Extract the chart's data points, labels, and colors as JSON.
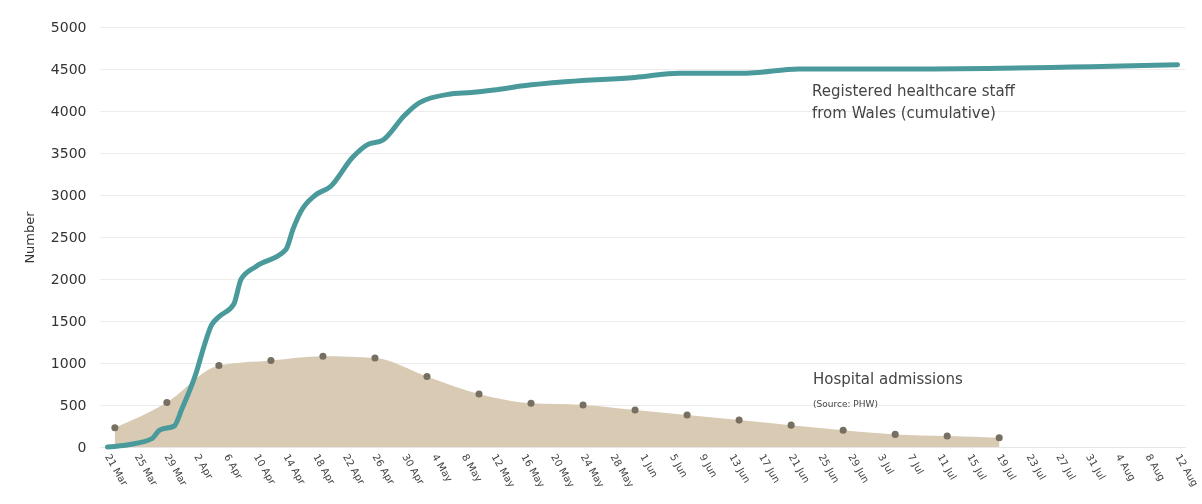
{
  "chart_data": {
    "type": "line",
    "ylabel": "Number",
    "xlim": [
      "--03-20",
      "--08-13"
    ],
    "xticks": [
      {
        "value": "--03-21",
        "label": "21 Mar"
      },
      {
        "value": "--03-25",
        "label": "25 Mar"
      },
      {
        "value": "--03-29",
        "label": "29 Mar"
      },
      {
        "value": "--04-02",
        "label": "2 Apr"
      },
      {
        "value": "--04-06",
        "label": "6 Apr"
      },
      {
        "value": "--04-10",
        "label": "10 Apr"
      },
      {
        "value": "--04-14",
        "label": "14 Apr"
      },
      {
        "value": "--04-18",
        "label": "18 Apr"
      },
      {
        "value": "--04-22",
        "label": "22 Apr"
      },
      {
        "value": "--04-26",
        "label": "26 Apr"
      },
      {
        "value": "--04-30",
        "label": "30 Apr"
      },
      {
        "value": "--05-04",
        "label": "4 May"
      },
      {
        "value": "--05-08",
        "label": "8 May"
      },
      {
        "value": "--05-12",
        "label": "12 May"
      },
      {
        "value": "--05-16",
        "label": "16 May"
      },
      {
        "value": "--05-20",
        "label": "20 May"
      },
      {
        "value": "--05-24",
        "label": "24 May"
      },
      {
        "value": "--05-28",
        "label": "28 May"
      },
      {
        "value": "--06-01",
        "label": "1 Jun"
      },
      {
        "value": "--06-05",
        "label": "5 Jun"
      },
      {
        "value": "--06-09",
        "label": "9 Jun"
      },
      {
        "value": "--06-13",
        "label": "13 Jun"
      },
      {
        "value": "--06-17",
        "label": "17 Jun"
      },
      {
        "value": "--06-21",
        "label": "21 Jun"
      },
      {
        "value": "--06-25",
        "label": "25 Jun"
      },
      {
        "value": "--06-29",
        "label": "29 Jun"
      },
      {
        "value": "--07-03",
        "label": "3 Jul"
      },
      {
        "value": "--07-07",
        "label": "7 Jul"
      },
      {
        "value": "--07-11",
        "label": "11 Jul"
      },
      {
        "value": "--07-15",
        "label": "15 Jul"
      },
      {
        "value": "--07-19",
        "label": "19 Jul"
      },
      {
        "value": "--07-23",
        "label": "23 Jul"
      },
      {
        "value": "--07-27",
        "label": "27 Jul"
      },
      {
        "value": "--07-31",
        "label": "31 Jul"
      },
      {
        "value": "--08-04",
        "label": "4 Aug"
      },
      {
        "value": "--08-08",
        "label": "8 Aug"
      },
      {
        "value": "--08-12",
        "label": "12 Aug"
      }
    ],
    "ylim": [
      0,
      5000
    ],
    "yticks": [
      0,
      500,
      1000,
      1500,
      2000,
      2500,
      3000,
      3500,
      4000,
      4500,
      5000
    ],
    "grid": "y",
    "series": [
      {
        "name": "Hospital admissions",
        "type": "area",
        "color": "#d9cbb3",
        "marker": "circle",
        "x": [
          "--03-22",
          "--03-29",
          "--04-05",
          "--04-12",
          "--04-19",
          "--04-26",
          "--05-03",
          "--05-10",
          "--05-17",
          "--05-24",
          "--05-31",
          "--06-07",
          "--06-14",
          "--06-21",
          "--06-28",
          "--07-05",
          "--07-12",
          "--07-19"
        ],
        "values": [
          230,
          530,
          970,
          1030,
          1080,
          1060,
          840,
          630,
          520,
          500,
          440,
          380,
          320,
          260,
          200,
          150,
          130,
          110
        ]
      },
      {
        "name": "Registered healthcare staff from Wales (cumulative)",
        "type": "line",
        "color": "#4a9a9c",
        "x": [
          "--03-21",
          "--03-24",
          "--03-27",
          "--03-28",
          "--03-30",
          "--03-31",
          "--04-02",
          "--04-03",
          "--04-04",
          "--04-05",
          "--04-07",
          "--04-08",
          "--04-10",
          "--04-14",
          "--04-15",
          "--04-16",
          "--04-18",
          "--04-20",
          "--04-23",
          "--04-25",
          "--04-27",
          "--04-30",
          "--05-02",
          "--05-06",
          "--05-09",
          "--05-12",
          "--05-16",
          "--05-22",
          "--05-31",
          "--06-06",
          "--06-15",
          "--06-22",
          "--07-07",
          "--08-12"
        ],
        "values": [
          0,
          30,
          100,
          200,
          250,
          450,
          900,
          1200,
          1450,
          1550,
          1700,
          2000,
          2150,
          2350,
          2600,
          2800,
          3000,
          3100,
          3450,
          3600,
          3650,
          3950,
          4100,
          4200,
          4220,
          4250,
          4300,
          4350,
          4400,
          4450,
          4450,
          4500,
          4500,
          4550
        ]
      }
    ],
    "annotations": [
      "(Source: PHW)"
    ]
  }
}
